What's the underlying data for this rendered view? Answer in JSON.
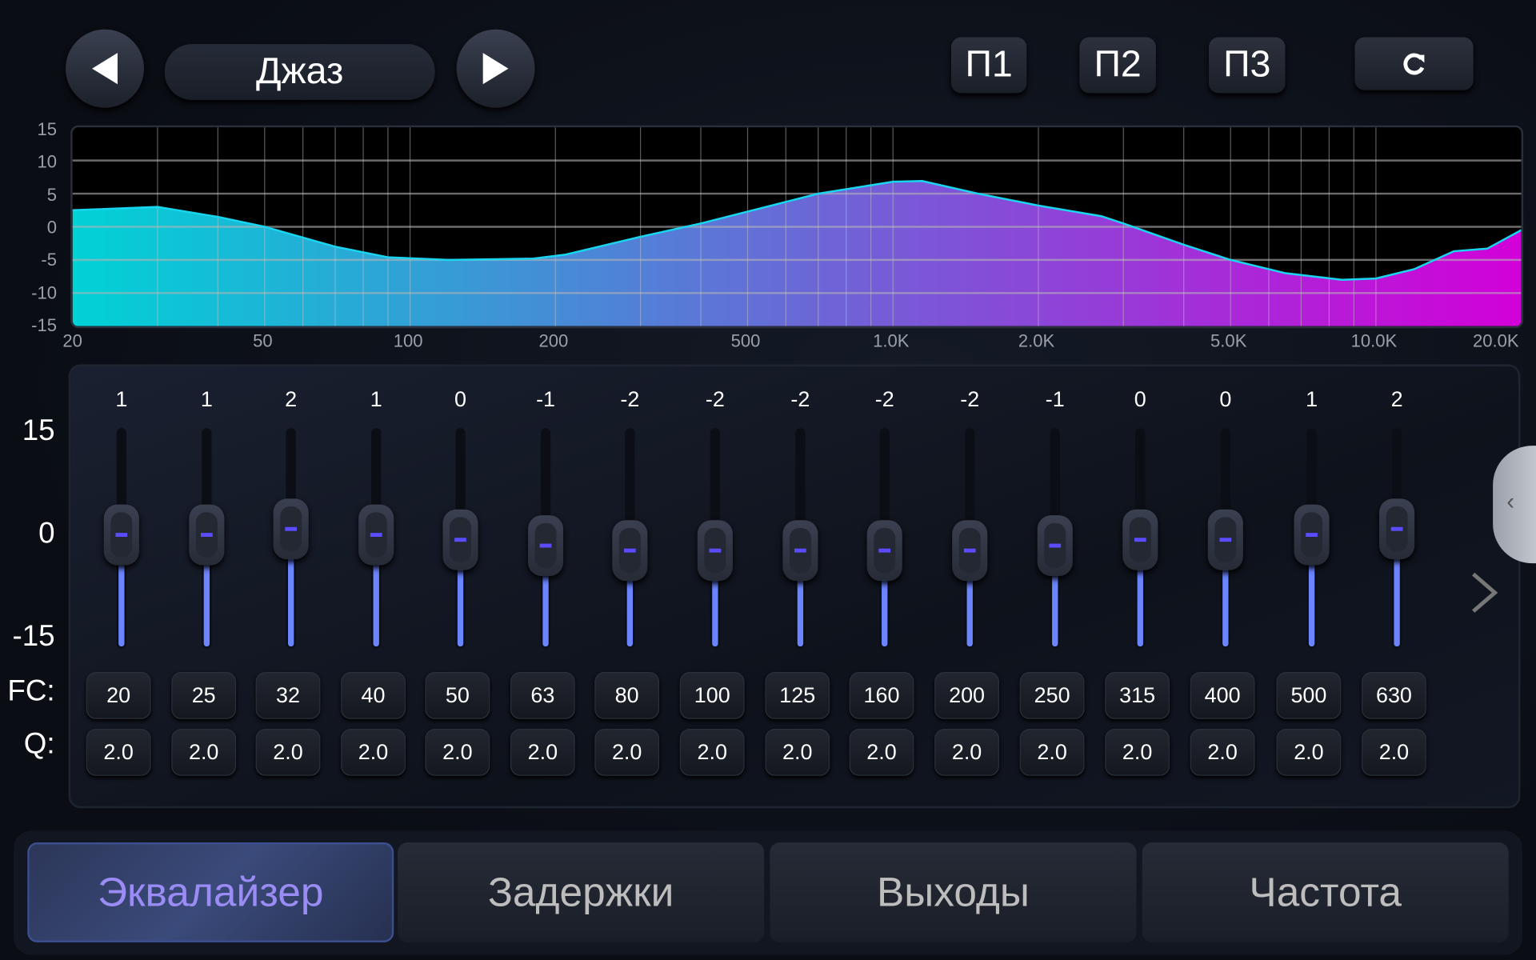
{
  "header": {
    "preset_name": "Джаз",
    "prev_icon": "triangle-left-icon",
    "next_icon": "triangle-right-icon",
    "presets": [
      "П1",
      "П2",
      "П3"
    ],
    "reset_icon": "refresh-icon"
  },
  "curve": {
    "y_ticks": [
      "15",
      "10",
      "5",
      "0",
      "-5",
      "-10",
      "-15"
    ],
    "x_ticks": [
      "20",
      "50",
      "100",
      "200",
      "500",
      "1.0K",
      "2.0K",
      "5.0K",
      "10.0K",
      "20.0K"
    ],
    "x_tick_values": [
      20,
      50,
      100,
      200,
      500,
      1000,
      2000,
      5000,
      10000,
      20000
    ],
    "ylim": [
      -15,
      15
    ],
    "xlim": [
      20,
      20000
    ],
    "x_scale": "log",
    "points": [
      [
        20,
        2.5
      ],
      [
        30,
        3
      ],
      [
        40,
        1.5
      ],
      [
        50,
        0
      ],
      [
        70,
        -3
      ],
      [
        90,
        -4.6
      ],
      [
        120,
        -5
      ],
      [
        180,
        -4.8
      ],
      [
        210,
        -4.2
      ],
      [
        300,
        -1.5
      ],
      [
        400,
        0.5
      ],
      [
        700,
        5
      ],
      [
        1000,
        6.8
      ],
      [
        1150,
        6.9
      ],
      [
        1500,
        5
      ],
      [
        2000,
        3.2
      ],
      [
        2700,
        1.6
      ],
      [
        3000,
        0.5
      ],
      [
        4000,
        -2.7
      ],
      [
        5000,
        -5
      ],
      [
        6500,
        -7
      ],
      [
        8500,
        -8
      ],
      [
        10000,
        -7.8
      ],
      [
        12000,
        -6.4
      ],
      [
        14500,
        -3.7
      ],
      [
        17000,
        -3.3
      ],
      [
        20000,
        -0.5
      ]
    ],
    "fill_colors": [
      "#00d2d6",
      "#d200d8"
    ],
    "line_color": "#19d6f0"
  },
  "eq": {
    "scale": {
      "top": "15",
      "mid": "0",
      "bottom": "-15"
    },
    "fc_label": "FC:",
    "q_label": "Q:",
    "range": [
      -15,
      15
    ],
    "bands": [
      {
        "gain": "1",
        "fc": "20",
        "q": "2.0"
      },
      {
        "gain": "1",
        "fc": "25",
        "q": "2.0"
      },
      {
        "gain": "2",
        "fc": "32",
        "q": "2.0"
      },
      {
        "gain": "1",
        "fc": "40",
        "q": "2.0"
      },
      {
        "gain": "0",
        "fc": "50",
        "q": "2.0"
      },
      {
        "gain": "-1",
        "fc": "63",
        "q": "2.0"
      },
      {
        "gain": "-2",
        "fc": "80",
        "q": "2.0"
      },
      {
        "gain": "-2",
        "fc": "100",
        "q": "2.0"
      },
      {
        "gain": "-2",
        "fc": "125",
        "q": "2.0"
      },
      {
        "gain": "-2",
        "fc": "160",
        "q": "2.0"
      },
      {
        "gain": "-2",
        "fc": "200",
        "q": "2.0"
      },
      {
        "gain": "-1",
        "fc": "250",
        "q": "2.0"
      },
      {
        "gain": "0",
        "fc": "315",
        "q": "2.0"
      },
      {
        "gain": "0",
        "fc": "400",
        "q": "2.0"
      },
      {
        "gain": "1",
        "fc": "500",
        "q": "2.0"
      },
      {
        "gain": "2",
        "fc": "630",
        "q": "2.0"
      }
    ],
    "accent": "#6b84ff"
  },
  "tabs": [
    {
      "label": "Эквалайзер",
      "active": true
    },
    {
      "label": "Задержки"
    },
    {
      "label": "Выходы"
    },
    {
      "label": "Частота"
    }
  ]
}
